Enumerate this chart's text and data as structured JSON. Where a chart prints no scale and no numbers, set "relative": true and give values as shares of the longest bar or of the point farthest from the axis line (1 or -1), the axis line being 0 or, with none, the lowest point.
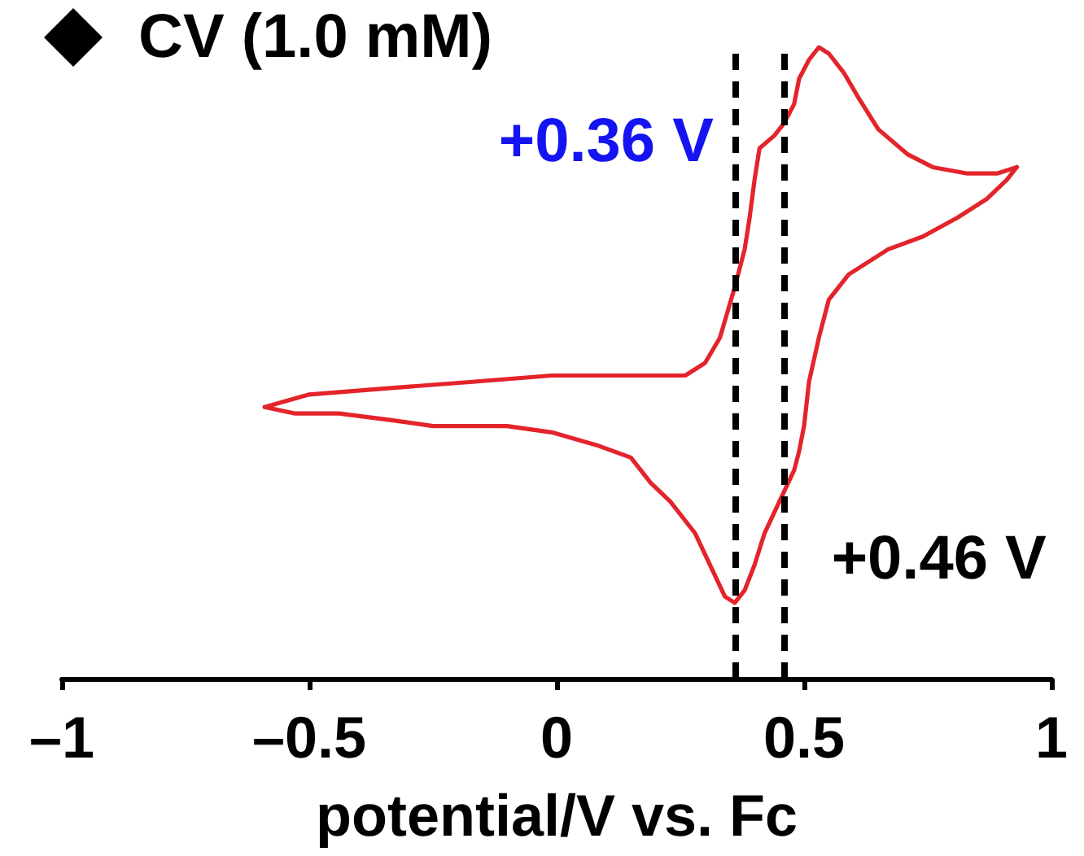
{
  "chart_data": {
    "type": "line",
    "title": "CV (1.0 mM)",
    "xlabel": "potential/V vs. Fc",
    "relative": true,
    "marker": "none",
    "xlim": [
      -1,
      1
    ],
    "xticks": [
      {
        "value": -1,
        "label": "–1"
      },
      {
        "value": -0.5,
        "label": "–0.5"
      },
      0,
      0.5,
      1
    ],
    "series": [
      {
        "color": "#e3242b",
        "x": [
          -0.59,
          -0.5,
          -0.34,
          -0.17,
          -0.01,
          0.19,
          0.26,
          0.3,
          0.33,
          0.36,
          0.38,
          0.39,
          0.4,
          0.41,
          0.44,
          0.46,
          0.48,
          0.49,
          0.51,
          0.53,
          0.55,
          0.58,
          0.61,
          0.65,
          0.71,
          0.76,
          0.83,
          0.89,
          0.93
        ],
        "values": [
          0.43,
          0.45,
          0.46,
          0.47,
          0.48,
          0.48,
          0.48,
          0.5,
          0.54,
          0.62,
          0.68,
          0.73,
          0.79,
          0.84,
          0.86,
          0.88,
          0.91,
          0.95,
          0.98,
          1.0,
          0.99,
          0.96,
          0.92,
          0.87,
          0.83,
          0.81,
          0.8,
          0.8,
          0.81
        ]
      },
      {
        "color": "#e3242b",
        "x": [
          0.93,
          0.91,
          0.87,
          0.81,
          0.74,
          0.67,
          0.63,
          0.59,
          0.55,
          0.53,
          0.51,
          0.5,
          0.49,
          0.48,
          0.45,
          0.42,
          0.4,
          0.38,
          0.36,
          0.34,
          0.31,
          0.28,
          0.23,
          0.19,
          0.15,
          0.08,
          -0.01,
          -0.1,
          -0.19,
          -0.25,
          -0.34,
          -0.44,
          -0.53,
          -0.59
        ],
        "values": [
          0.81,
          0.79,
          0.76,
          0.73,
          0.7,
          0.68,
          0.66,
          0.64,
          0.6,
          0.54,
          0.47,
          0.4,
          0.36,
          0.33,
          0.28,
          0.23,
          0.18,
          0.14,
          0.12,
          0.13,
          0.18,
          0.23,
          0.28,
          0.31,
          0.35,
          0.37,
          0.39,
          0.4,
          0.4,
          0.4,
          0.41,
          0.42,
          0.42,
          0.43
        ]
      }
    ],
    "ref_lines": [
      {
        "axis": "x",
        "value": 0.36,
        "label": "+0.36 V",
        "color": "#000000",
        "line_style": "dashed"
      },
      {
        "axis": "x",
        "value": 0.46,
        "label": "+0.46 V",
        "color": "#000000",
        "line_style": "dashed"
      }
    ]
  }
}
